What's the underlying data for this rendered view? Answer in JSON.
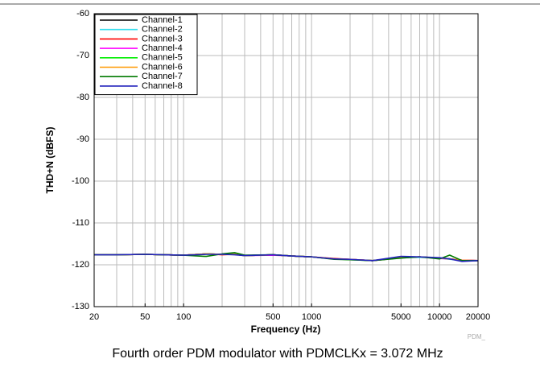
{
  "chart_data": {
    "type": "line",
    "ylabel": "THD+N (dBFS)",
    "xlabel": "Frequency (Hz)",
    "caption": "Fourth order PDM modulator with PDMCLKx = 3.072 MHz",
    "watermark": "PDM_",
    "log_x": true,
    "grid": true,
    "legend": "upper left",
    "xlim": [
      20,
      20000
    ],
    "xticks": [
      20,
      50,
      100,
      500,
      1000,
      5000,
      10000,
      20000
    ],
    "x_gridlines": [
      20,
      30,
      40,
      50,
      60,
      70,
      80,
      90,
      100,
      200,
      300,
      400,
      500,
      600,
      700,
      800,
      900,
      1000,
      2000,
      3000,
      4000,
      5000,
      6000,
      7000,
      8000,
      9000,
      10000,
      20000
    ],
    "ylim": [
      -130,
      -60
    ],
    "yticks": [
      -60,
      -70,
      -80,
      -90,
      -100,
      -110,
      -120,
      -130
    ],
    "x": [
      20,
      30,
      50,
      70,
      100,
      150,
      200,
      250,
      300,
      500,
      700,
      1000,
      1500,
      2000,
      3000,
      5000,
      7000,
      10000,
      12000,
      15000,
      20000
    ],
    "series": [
      {
        "name": "Channel-1",
        "color": "#000000",
        "values": [
          -117.6,
          -117.6,
          -117.5,
          -117.6,
          -117.7,
          -117.4,
          -117.5,
          -117.5,
          -117.8,
          -117.6,
          -117.9,
          -118.1,
          -118.6,
          -118.7,
          -119.0,
          -118.3,
          -118.1,
          -118.4,
          -118.6,
          -118.9,
          -119.0
        ]
      },
      {
        "name": "Channel-2",
        "color": "#33ddee",
        "values": [
          -117.6,
          -117.6,
          -117.5,
          -117.6,
          -117.7,
          -117.5,
          -117.5,
          -117.5,
          -117.8,
          -117.6,
          -117.9,
          -118.1,
          -118.6,
          -118.7,
          -119.0,
          -118.3,
          -118.2,
          -118.4,
          -118.7,
          -118.9,
          -119.0
        ]
      },
      {
        "name": "Channel-3",
        "color": "#ff0000",
        "values": [
          -117.6,
          -117.6,
          -117.5,
          -117.6,
          -117.7,
          -117.4,
          -117.6,
          -117.5,
          -117.8,
          -117.6,
          -117.9,
          -118.1,
          -118.5,
          -118.7,
          -119.0,
          -118.3,
          -118.1,
          -118.4,
          -118.6,
          -118.9,
          -119.0
        ]
      },
      {
        "name": "Channel-4",
        "color": "#ff00ff",
        "values": [
          -117.6,
          -117.6,
          -117.5,
          -117.6,
          -117.7,
          -117.4,
          -117.5,
          -117.5,
          -117.8,
          -117.7,
          -117.9,
          -118.1,
          -118.6,
          -118.7,
          -119.0,
          -118.3,
          -118.1,
          -118.5,
          -118.6,
          -118.9,
          -119.0
        ]
      },
      {
        "name": "Channel-5",
        "color": "#00ee00",
        "values": [
          -117.6,
          -117.6,
          -117.5,
          -117.6,
          -117.7,
          -117.4,
          -117.5,
          -117.5,
          -117.8,
          -117.6,
          -117.9,
          -118.1,
          -118.6,
          -118.8,
          -119.0,
          -118.3,
          -118.1,
          -118.4,
          -118.6,
          -119.0,
          -119.0
        ]
      },
      {
        "name": "Channel-6",
        "color": "#ff9900",
        "values": [
          -117.6,
          -117.6,
          -117.5,
          -117.6,
          -117.7,
          -117.4,
          -117.5,
          -117.5,
          -117.8,
          -117.6,
          -117.9,
          -118.1,
          -118.6,
          -118.7,
          -119.0,
          -118.3,
          -118.1,
          -118.4,
          -118.6,
          -118.9,
          -119.0
        ]
      },
      {
        "name": "Channel-7",
        "color": "#007a00",
        "values": [
          -117.6,
          -117.6,
          -117.5,
          -117.6,
          -117.7,
          -118.0,
          -117.4,
          -117.1,
          -117.7,
          -117.6,
          -117.9,
          -118.1,
          -118.7,
          -118.8,
          -119.0,
          -118.4,
          -118.1,
          -118.6,
          -117.7,
          -119.0,
          -119.0
        ]
      },
      {
        "name": "Channel-8",
        "color": "#2222bb",
        "values": [
          -117.6,
          -117.6,
          -117.5,
          -117.6,
          -117.7,
          -117.5,
          -117.5,
          -117.6,
          -117.8,
          -117.6,
          -117.9,
          -118.1,
          -118.6,
          -118.7,
          -119.0,
          -118.0,
          -118.1,
          -118.3,
          -118.6,
          -119.2,
          -119.0
        ]
      }
    ]
  }
}
